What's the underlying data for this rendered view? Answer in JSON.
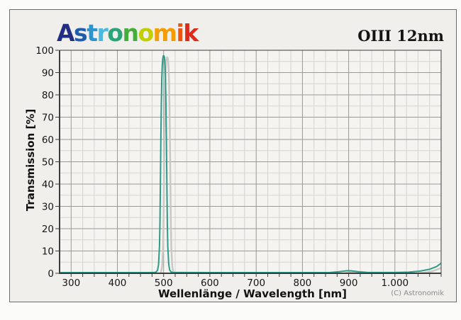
{
  "header": {
    "logo_text": "Astronomik",
    "logo_letter_colors": [
      "#232e82",
      "#1f5cad",
      "#2f93cc",
      "#49b9e0",
      "#2aa578",
      "#45ad3d",
      "#c1cf00",
      "#f59c00",
      "#ea5514",
      "#dd2a1b"
    ],
    "title": "OIII 12nm"
  },
  "footer": {
    "copyright": "(C) Astronomik"
  },
  "colors": {
    "frame_background": "#f1efec",
    "plot_background": "#f5f4f1",
    "grid_major": "#9a9996",
    "grid_minor": "#d4d3d0",
    "axis": "#3d3d3d",
    "curve": "#2e9b88",
    "curve_shadow": "#c9c8c5",
    "text": "#141414",
    "copyright_text": "#8b8b8b"
  },
  "chart_data": {
    "type": "line",
    "title": "OIII 12nm",
    "xlabel": "Wellenlänge / Wavelength [nm]",
    "ylabel": "Transmission [%]",
    "xlim": [
      275,
      1100
    ],
    "ylim": [
      0,
      100
    ],
    "x_major_ticks": [
      300,
      400,
      500,
      600,
      700,
      800,
      900,
      1000
    ],
    "x_tick_labels": [
      "300",
      "400",
      "500",
      "600",
      "700",
      "800",
      "900",
      "1.000"
    ],
    "x_minor_step": 25,
    "y_major_ticks": [
      0,
      10,
      20,
      30,
      40,
      50,
      60,
      70,
      80,
      90,
      100
    ],
    "y_tick_labels": [
      "0",
      "10",
      "20",
      "30",
      "40",
      "50",
      "60",
      "70",
      "80",
      "90",
      "100"
    ],
    "y_minor_step": 5,
    "grid": true,
    "legend": "none",
    "peak": {
      "wavelength_nm": 500,
      "transmission_pct": 97.5,
      "fwhm_nm": 12
    },
    "series": [
      {
        "name": "OIII 12nm transmission",
        "points": [
          [
            275,
            0.3
          ],
          [
            400,
            0.3
          ],
          [
            460,
            0.3
          ],
          [
            480,
            0.35
          ],
          [
            484,
            0.6
          ],
          [
            487,
            1.5
          ],
          [
            489,
            4
          ],
          [
            491,
            12
          ],
          [
            492,
            22
          ],
          [
            493,
            40
          ],
          [
            494,
            60
          ],
          [
            495,
            76
          ],
          [
            496,
            87
          ],
          [
            497,
            93
          ],
          [
            498,
            96
          ],
          [
            499,
            97.3
          ],
          [
            500,
            97.6
          ],
          [
            501,
            97.4
          ],
          [
            502,
            96.2
          ],
          [
            503,
            93
          ],
          [
            504,
            87
          ],
          [
            505,
            76
          ],
          [
            506,
            60
          ],
          [
            507,
            40
          ],
          [
            508,
            22
          ],
          [
            509,
            12
          ],
          [
            511,
            4
          ],
          [
            513,
            1.5
          ],
          [
            516,
            0.6
          ],
          [
            520,
            0.35
          ],
          [
            600,
            0.3
          ],
          [
            700,
            0.3
          ],
          [
            800,
            0.3
          ],
          [
            860,
            0.35
          ],
          [
            880,
            0.7
          ],
          [
            895,
            1.1
          ],
          [
            905,
            1.1
          ],
          [
            920,
            0.7
          ],
          [
            940,
            0.4
          ],
          [
            1000,
            0.35
          ],
          [
            1030,
            0.5
          ],
          [
            1055,
            1.0
          ],
          [
            1075,
            1.8
          ],
          [
            1090,
            3.0
          ],
          [
            1100,
            4.5
          ]
        ]
      }
    ]
  }
}
